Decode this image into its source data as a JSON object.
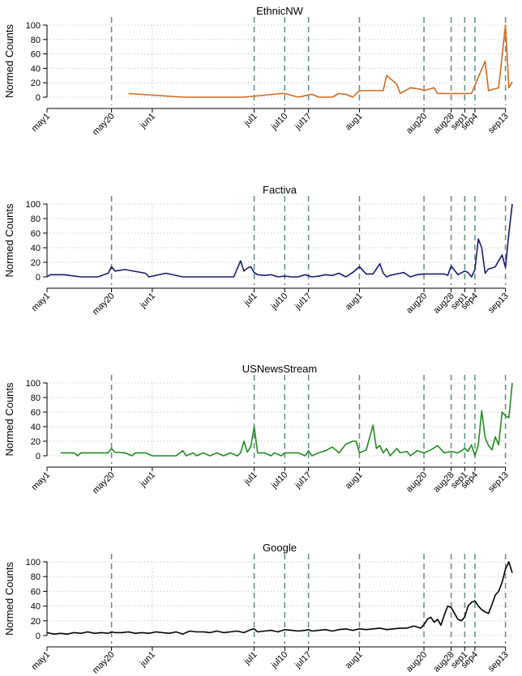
{
  "ylabel": "Normed Counts",
  "x_ticks": [
    {
      "label": "may1",
      "day": 0
    },
    {
      "label": "may20",
      "day": 19
    },
    {
      "label": "jun1",
      "day": 31
    },
    {
      "label": "jul1",
      "day": 61
    },
    {
      "label": "jul10",
      "day": 70
    },
    {
      "label": "jul17",
      "day": 77
    },
    {
      "label": "aug1",
      "day": 92
    },
    {
      "label": "aug20",
      "day": 111
    },
    {
      "label": "aug28",
      "day": 119
    },
    {
      "label": "sep1",
      "day": 123
    },
    {
      "label": "sep4",
      "day": 126
    },
    {
      "label": "sep13",
      "day": 135
    }
  ],
  "event_days": [
    19,
    61,
    70,
    77,
    92,
    111,
    119,
    123,
    126,
    135
  ],
  "y_ticks": [
    0,
    20,
    40,
    60,
    80,
    100
  ],
  "chart_data": [
    {
      "type": "line",
      "title": "EthnicNW",
      "color": "#d2691e",
      "xlim": [
        "may1",
        "sep16"
      ],
      "ylim": [
        0,
        100
      ],
      "grid": true,
      "x_unit": "days since may1",
      "x": [
        24,
        40,
        58,
        69,
        70,
        74,
        78,
        80,
        82,
        84,
        86,
        88,
        90,
        92,
        99,
        100,
        103,
        104,
        107,
        110,
        111,
        114,
        115,
        117,
        119,
        121,
        123,
        125,
        129,
        130,
        133,
        135,
        136,
        137
      ],
      "y": [
        5,
        0,
        0,
        5,
        5,
        0,
        4,
        0,
        0,
        0,
        5,
        4,
        0,
        9,
        9,
        30,
        18,
        5,
        13,
        11,
        9,
        13,
        5,
        5,
        5,
        5,
        5,
        5,
        50,
        9,
        13,
        100,
        13,
        21
      ]
    },
    {
      "type": "line",
      "title": "Factiva",
      "color": "#191970",
      "xlim": [
        "may1",
        "sep16"
      ],
      "ylim": [
        0,
        100
      ],
      "grid": true,
      "x_unit": "days since may1",
      "x": [
        0,
        1,
        5,
        10,
        15,
        18,
        19,
        20,
        23,
        29,
        30,
        35,
        40,
        45,
        55,
        57,
        58,
        59,
        60,
        61,
        62,
        64,
        66,
        68,
        70,
        72,
        74,
        76,
        78,
        80,
        82,
        84,
        86,
        88,
        90,
        92,
        94,
        96,
        98,
        99,
        100,
        101,
        103,
        105,
        107,
        109,
        111,
        113,
        115,
        117,
        118,
        119,
        121,
        123,
        124,
        125,
        126,
        127,
        128,
        129,
        130,
        131,
        132,
        133,
        134,
        135,
        136,
        137
      ],
      "y": [
        0,
        3,
        3,
        0,
        0,
        5,
        14,
        8,
        10,
        5,
        0,
        5,
        0,
        0,
        0,
        22,
        8,
        12,
        14,
        6,
        3,
        2,
        3,
        0,
        1,
        0,
        0,
        3,
        0,
        1,
        3,
        2,
        5,
        0,
        6,
        14,
        4,
        4,
        18,
        5,
        0,
        2,
        4,
        6,
        0,
        3,
        4,
        4,
        4,
        4,
        2,
        15,
        3,
        8,
        6,
        0,
        10,
        52,
        40,
        5,
        11,
        12,
        14,
        22,
        30,
        13,
        60,
        100
      ]
    },
    {
      "type": "line",
      "title": "USNewsStream",
      "color": "#228b22",
      "xlim": [
        "may1",
        "sep16"
      ],
      "ylim": [
        0,
        100
      ],
      "grid": true,
      "x_unit": "days since may1",
      "x": [
        4,
        8,
        9,
        10,
        12,
        15,
        18,
        19,
        20,
        23,
        25,
        26,
        29,
        31,
        35,
        38,
        40,
        41,
        43,
        44,
        46,
        48,
        50,
        52,
        54,
        56,
        57,
        58,
        59,
        60,
        61,
        62,
        64,
        66,
        67,
        69,
        70,
        72,
        74,
        76,
        77,
        78,
        80,
        82,
        84,
        86,
        88,
        90,
        91,
        92,
        94,
        96,
        97,
        98,
        99,
        100,
        101,
        103,
        104,
        106,
        107,
        109,
        111,
        113,
        115,
        117,
        119,
        121,
        123,
        124,
        125,
        126,
        127,
        128,
        129,
        130,
        131,
        132,
        133,
        134,
        135,
        136,
        137
      ],
      "y": [
        4,
        4,
        0,
        4,
        4,
        4,
        4,
        10,
        5,
        4,
        0,
        4,
        4,
        0,
        0,
        0,
        7,
        0,
        4,
        0,
        4,
        0,
        4,
        0,
        4,
        0,
        4,
        20,
        5,
        13,
        40,
        4,
        4,
        0,
        4,
        0,
        4,
        4,
        4,
        0,
        7,
        0,
        4,
        7,
        12,
        4,
        16,
        20,
        20,
        4,
        8,
        42,
        10,
        14,
        4,
        10,
        0,
        10,
        4,
        6,
        0,
        7,
        4,
        8,
        14,
        4,
        6,
        4,
        10,
        6,
        15,
        0,
        15,
        62,
        25,
        14,
        8,
        26,
        15,
        60,
        55,
        52,
        100
      ]
    },
    {
      "type": "line",
      "title": "Google",
      "color": "#000000",
      "xlim": [
        "may1",
        "sep16"
      ],
      "ylim": [
        0,
        100
      ],
      "grid": true,
      "x_unit": "days since may1",
      "x": [
        0,
        2,
        4,
        6,
        8,
        10,
        12,
        14,
        16,
        18,
        19,
        20,
        22,
        24,
        26,
        28,
        30,
        32,
        34,
        36,
        38,
        40,
        42,
        44,
        46,
        48,
        50,
        52,
        54,
        56,
        58,
        60,
        61,
        62,
        64,
        66,
        68,
        70,
        72,
        74,
        76,
        77,
        78,
        80,
        82,
        84,
        86,
        88,
        90,
        92,
        94,
        96,
        98,
        100,
        102,
        104,
        106,
        108,
        110,
        111,
        112,
        113,
        114,
        115,
        116,
        117,
        118,
        119,
        120,
        121,
        122,
        123,
        124,
        125,
        126,
        127,
        128,
        129,
        130,
        131,
        132,
        133,
        134,
        135,
        136,
        137
      ],
      "y": [
        4,
        2,
        3,
        2,
        4,
        3,
        5,
        3,
        4,
        3,
        5,
        4,
        4,
        5,
        3,
        4,
        3,
        5,
        4,
        3,
        5,
        2,
        6,
        5,
        5,
        4,
        6,
        4,
        5,
        6,
        4,
        8,
        9,
        5,
        6,
        7,
        5,
        8,
        7,
        6,
        7,
        8,
        6,
        7,
        8,
        6,
        8,
        9,
        7,
        9,
        8,
        9,
        10,
        8,
        9,
        10,
        10,
        13,
        10,
        15,
        22,
        25,
        18,
        22,
        14,
        28,
        40,
        38,
        30,
        22,
        20,
        25,
        40,
        45,
        47,
        40,
        35,
        32,
        30,
        42,
        55,
        60,
        72,
        90,
        100,
        85
      ]
    }
  ]
}
